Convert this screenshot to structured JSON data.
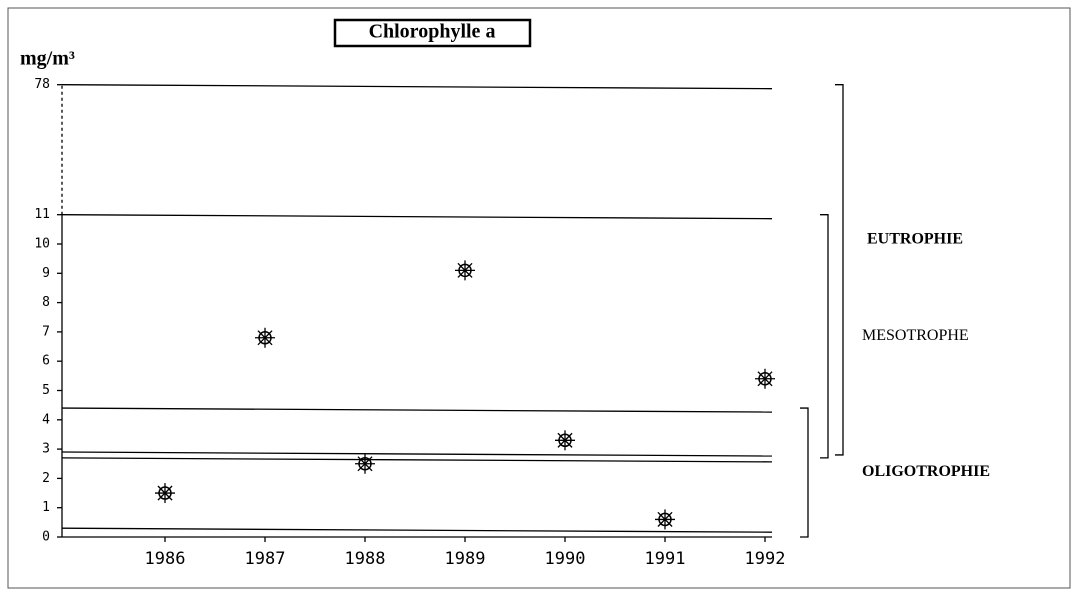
{
  "chart_data": {
    "type": "scatter",
    "title": "Chlorophylle a",
    "y_label": "mg/m³",
    "categories": [
      "1986",
      "1987",
      "1988",
      "1989",
      "1990",
      "1991",
      "1992"
    ],
    "values": [
      1.5,
      6.8,
      2.5,
      9.1,
      3.3,
      0.6,
      5.4
    ],
    "ylim": [
      0,
      78
    ],
    "yticks": [
      0,
      1,
      2,
      3,
      4,
      5,
      6,
      7,
      8,
      9,
      10,
      11,
      78
    ],
    "y_break": true,
    "thresholds": [
      78,
      11,
      4.4,
      2.9,
      2.7,
      0.3
    ],
    "zones": [
      {
        "label": "EUTROPHIE",
        "range": [
          2.8,
          78
        ]
      },
      {
        "label": "MESOTROPHE",
        "range": [
          2.7,
          11
        ]
      },
      {
        "label": "OLIGOTROPHIE",
        "range": [
          0,
          4.4
        ]
      }
    ],
    "color": "#000000"
  }
}
